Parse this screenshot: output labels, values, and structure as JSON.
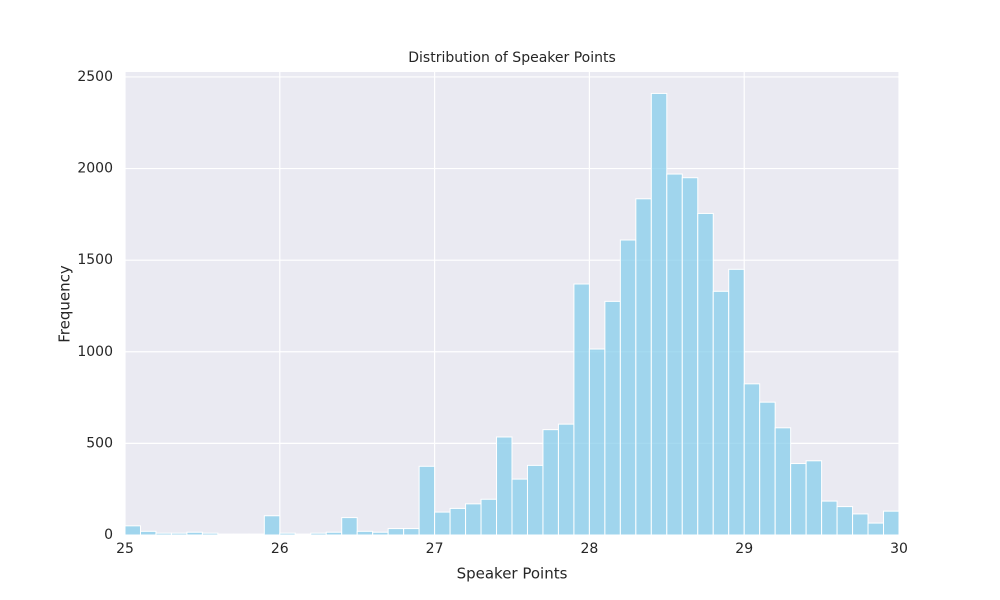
{
  "chart_data": {
    "type": "histogram",
    "title": "Distribution of Speaker Points",
    "x_label": "Speaker Points",
    "y_label": "Frequency",
    "bins": [
      25,
      25.1,
      25.2,
      25.3,
      25.4,
      25.5,
      25.6,
      25.7,
      25.8,
      25.9,
      26,
      26.1,
      26.2,
      26.3,
      26.4,
      26.5,
      26.6,
      26.7,
      26.8,
      26.9,
      27,
      27.1,
      27.2,
      27.3,
      27.4,
      27.5,
      27.6,
      27.7,
      27.8,
      27.9,
      28,
      28.1,
      28.2,
      28.3,
      28.4,
      28.5,
      28.6,
      28.7,
      28.8,
      28.9,
      29,
      29.1,
      29.2,
      29.3,
      29.4,
      29.5,
      29.6,
      29.7,
      29.8,
      29.9,
      30
    ],
    "values": [
      50,
      20,
      10,
      10,
      15,
      10,
      5,
      5,
      5,
      105,
      10,
      5,
      10,
      15,
      95,
      20,
      15,
      35,
      35,
      375,
      125,
      145,
      170,
      195,
      535,
      305,
      380,
      575,
      605,
      1370,
      1015,
      1275,
      1610,
      1835,
      2410,
      1970,
      1950,
      1755,
      1330,
      1450,
      825,
      725,
      585,
      390,
      405,
      185,
      155,
      115,
      65,
      130
    ],
    "color": "#87ceeb",
    "xlim": [
      25,
      30
    ],
    "ylim": [
      0,
      2527
    ],
    "xticks": [
      25,
      26,
      27,
      28,
      29,
      30
    ],
    "yticks": [
      0,
      500,
      1000,
      1500,
      2000,
      2500
    ],
    "grid": true
  }
}
